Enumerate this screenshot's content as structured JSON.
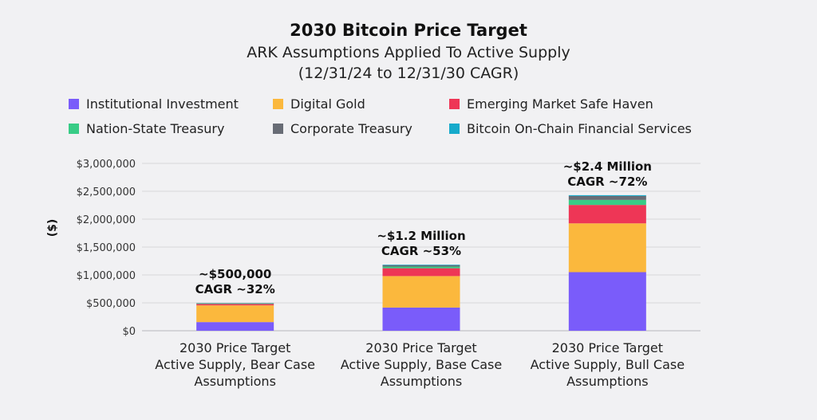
{
  "chart_data": {
    "type": "bar",
    "stacked": true,
    "title": "2030 Bitcoin Price Target",
    "subtitle_lines": [
      "ARK Assumptions Applied To Active Supply",
      "(12/31/24 to 12/31/30 CAGR)"
    ],
    "ylabel": "($)",
    "xlabel": "",
    "ylim": [
      0,
      3000000
    ],
    "y_ticks": [
      {
        "value": 0,
        "label": "$0"
      },
      {
        "value": 500000,
        "label": "$500,000"
      },
      {
        "value": 1000000,
        "label": "$1,000,000"
      },
      {
        "value": 1500000,
        "label": "$1,500,000"
      },
      {
        "value": 2000000,
        "label": "$2,000,000"
      },
      {
        "value": 2500000,
        "label": "$2,500,000"
      },
      {
        "value": 3000000,
        "label": "$3,000,000"
      }
    ],
    "grid": true,
    "legend_position": "top",
    "categories": [
      [
        "2030 Price Target",
        "Active Supply, Bear Case",
        "Assumptions"
      ],
      [
        "2030 Price Target",
        "Active Supply, Base Case",
        "Assumptions"
      ],
      [
        "2030 Price Target",
        "Active Supply, Bull Case",
        "Assumptions"
      ]
    ],
    "series": [
      {
        "name": "Institutional Investment",
        "color": "#7a5cfa",
        "values": [
          155000,
          415000,
          1050000
        ]
      },
      {
        "name": "Digital Gold",
        "color": "#fbb83d",
        "values": [
          300000,
          565000,
          875000
        ]
      },
      {
        "name": "Emerging Market Safe Haven",
        "color": "#ee3656",
        "values": [
          25000,
          140000,
          330000
        ]
      },
      {
        "name": "Nation-State Treasury",
        "color": "#38cc86",
        "values": [
          10000,
          30000,
          90000
        ]
      },
      {
        "name": "Corporate Treasury",
        "color": "#686c75",
        "values": [
          5000,
          25000,
          70000
        ]
      },
      {
        "name": "Bitcoin On-Chain Financial Services",
        "color": "#16aacb",
        "values": [
          3000,
          10000,
          15000
        ]
      }
    ],
    "annotations": [
      {
        "line1": "~$500,000",
        "line2": "CAGR ~32%"
      },
      {
        "line1": "~$1.2 Million",
        "line2": "CAGR ~53%"
      },
      {
        "line1": "~$2.4 Million",
        "line2": "CAGR ~72%"
      }
    ]
  }
}
